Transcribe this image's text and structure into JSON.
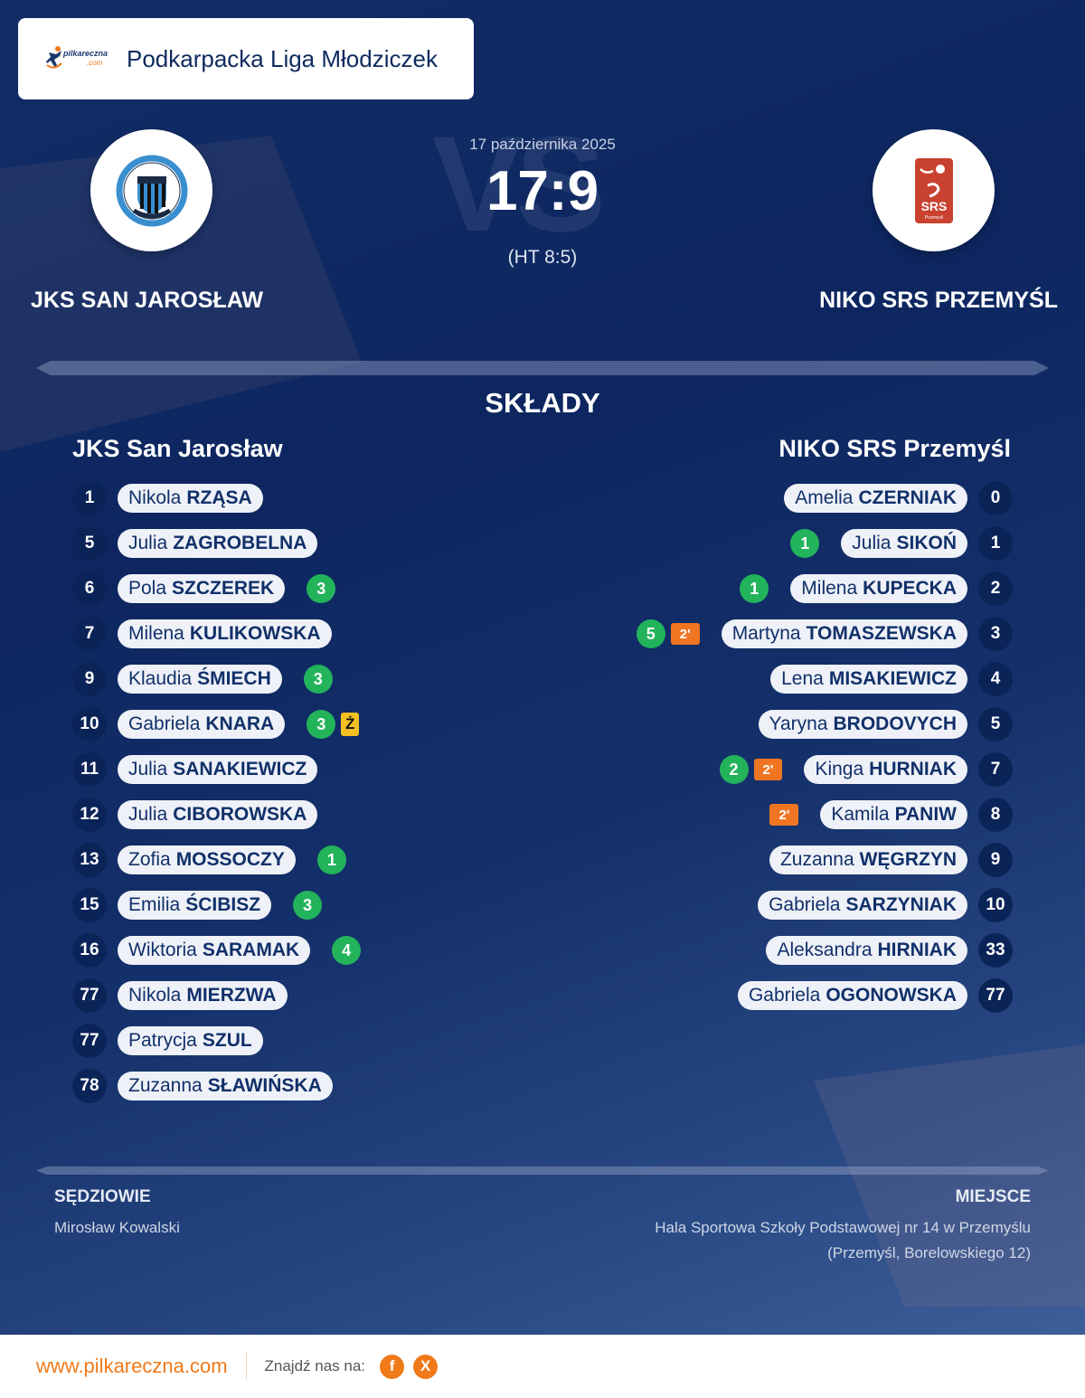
{
  "header": {
    "brand": {
      "name": "pilkareczna",
      "suffix": ".com"
    },
    "league": "Podkarpacka Liga Młodziczek"
  },
  "match": {
    "date": "17 października 2025",
    "score": "17:9",
    "half_time": "(HT 8:5)",
    "vs_watermark": "VS",
    "home_team": {
      "name_upper": "JKS SAN JAROSŁAW",
      "name": "JKS San Jarosław",
      "logo_icon": "jks-san-crest-icon"
    },
    "away_team": {
      "name_upper": "NIKO SRS PRZEMYŚL",
      "name": "NIKO SRS Przemyśl",
      "logo_icon": "srs-przemysl-crest-icon"
    }
  },
  "lineups": {
    "title": "SKŁADY",
    "home": [
      {
        "number": "1",
        "first": "Nikola",
        "last": "RZĄSA"
      },
      {
        "number": "5",
        "first": "Julia",
        "last": "ZAGROBELNA"
      },
      {
        "number": "6",
        "first": "Pola",
        "last": "SZCZEREK",
        "goals": "3"
      },
      {
        "number": "7",
        "first": "Milena",
        "last": "KULIKOWSKA"
      },
      {
        "number": "9",
        "first": "Klaudia",
        "last": "ŚMIECH",
        "goals": "3"
      },
      {
        "number": "10",
        "first": "Gabriela",
        "last": "KNARA",
        "goals": "3",
        "yellow_card": "Ż"
      },
      {
        "number": "11",
        "first": "Julia",
        "last": "SANAKIEWICZ"
      },
      {
        "number": "12",
        "first": "Julia",
        "last": "CIBOROWSKA"
      },
      {
        "number": "13",
        "first": "Zofia",
        "last": "MOSSOCZY",
        "goals": "1"
      },
      {
        "number": "15",
        "first": "Emilia",
        "last": "ŚCIBISZ",
        "goals": "3"
      },
      {
        "number": "16",
        "first": "Wiktoria",
        "last": "SARAMAK",
        "goals": "4"
      },
      {
        "number": "77",
        "first": "Nikola",
        "last": "MIERZWA"
      },
      {
        "number": "77",
        "first": "Patrycja",
        "last": "SZUL"
      },
      {
        "number": "78",
        "first": "Zuzanna",
        "last": "SŁAWIŃSKA"
      }
    ],
    "away": [
      {
        "number": "0",
        "first": "Amelia",
        "last": "CZERNIAK"
      },
      {
        "number": "1",
        "first": "Julia",
        "last": "SIKOŃ",
        "goals": "1"
      },
      {
        "number": "2",
        "first": "Milena",
        "last": "KUPECKA",
        "goals": "1"
      },
      {
        "number": "3",
        "first": "Martyna",
        "last": "TOMASZEWSKA",
        "goals": "5",
        "suspension": "2'"
      },
      {
        "number": "4",
        "first": "Lena",
        "last": "MISAKIEWICZ"
      },
      {
        "number": "5",
        "first": "Yaryna",
        "last": "BRODOVYCH"
      },
      {
        "number": "7",
        "first": "Kinga",
        "last": "HURNIAK",
        "goals": "2",
        "suspension": "2'"
      },
      {
        "number": "8",
        "first": "Kamila",
        "last": "PANIW",
        "suspension": "2'"
      },
      {
        "number": "9",
        "first": "Zuzanna",
        "last": "WĘGRZYN"
      },
      {
        "number": "10",
        "first": "Gabriela",
        "last": "SARZYNIAK"
      },
      {
        "number": "33",
        "first": "Aleksandra",
        "last": "HIRNIAK"
      },
      {
        "number": "77",
        "first": "Gabriela",
        "last": "OGONOWSKA"
      }
    ]
  },
  "officials": {
    "referees_label": "SĘDZIOWIE",
    "referees": "Mirosław Kowalski",
    "venue_label": "MIEJSCE",
    "venue_line1": "Hala Sportowa Szkoły Podstawowej nr 14 w Przemyślu",
    "venue_line2": "(Przemyśl, Borelowskiego 12)"
  },
  "footer": {
    "site": "www.pilkareczna.com",
    "find_us": "Znajdź nas na:",
    "social": [
      {
        "name": "facebook",
        "glyph": "f"
      },
      {
        "name": "x",
        "glyph": "X"
      }
    ]
  },
  "colors": {
    "background": "#0d2660",
    "pill": "#eef1f7",
    "pill_text": "#11306a",
    "goals": "#22b35b",
    "suspension": "#f07522",
    "yellow_card": "#f5c021",
    "brand_orange": "#f07a1a"
  }
}
